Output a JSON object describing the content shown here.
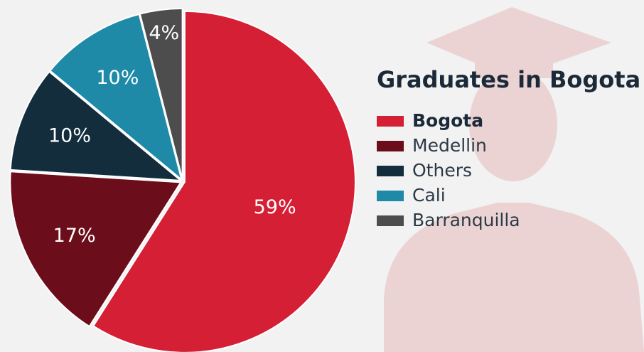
{
  "chart_data": {
    "type": "pie",
    "title": "Graduates in Bogota",
    "categories": [
      "Bogota",
      "Medellin",
      "Others",
      "Cali",
      "Barranquilla"
    ],
    "values": [
      59,
      17,
      10,
      10,
      4
    ],
    "value_labels": [
      "59%",
      "17%",
      "10%",
      "10%",
      "4%"
    ],
    "colors": [
      "#d41f35",
      "#6b0d1a",
      "#132d3c",
      "#1e8aa8",
      "#4d4d4d"
    ],
    "legend": "right"
  }
}
